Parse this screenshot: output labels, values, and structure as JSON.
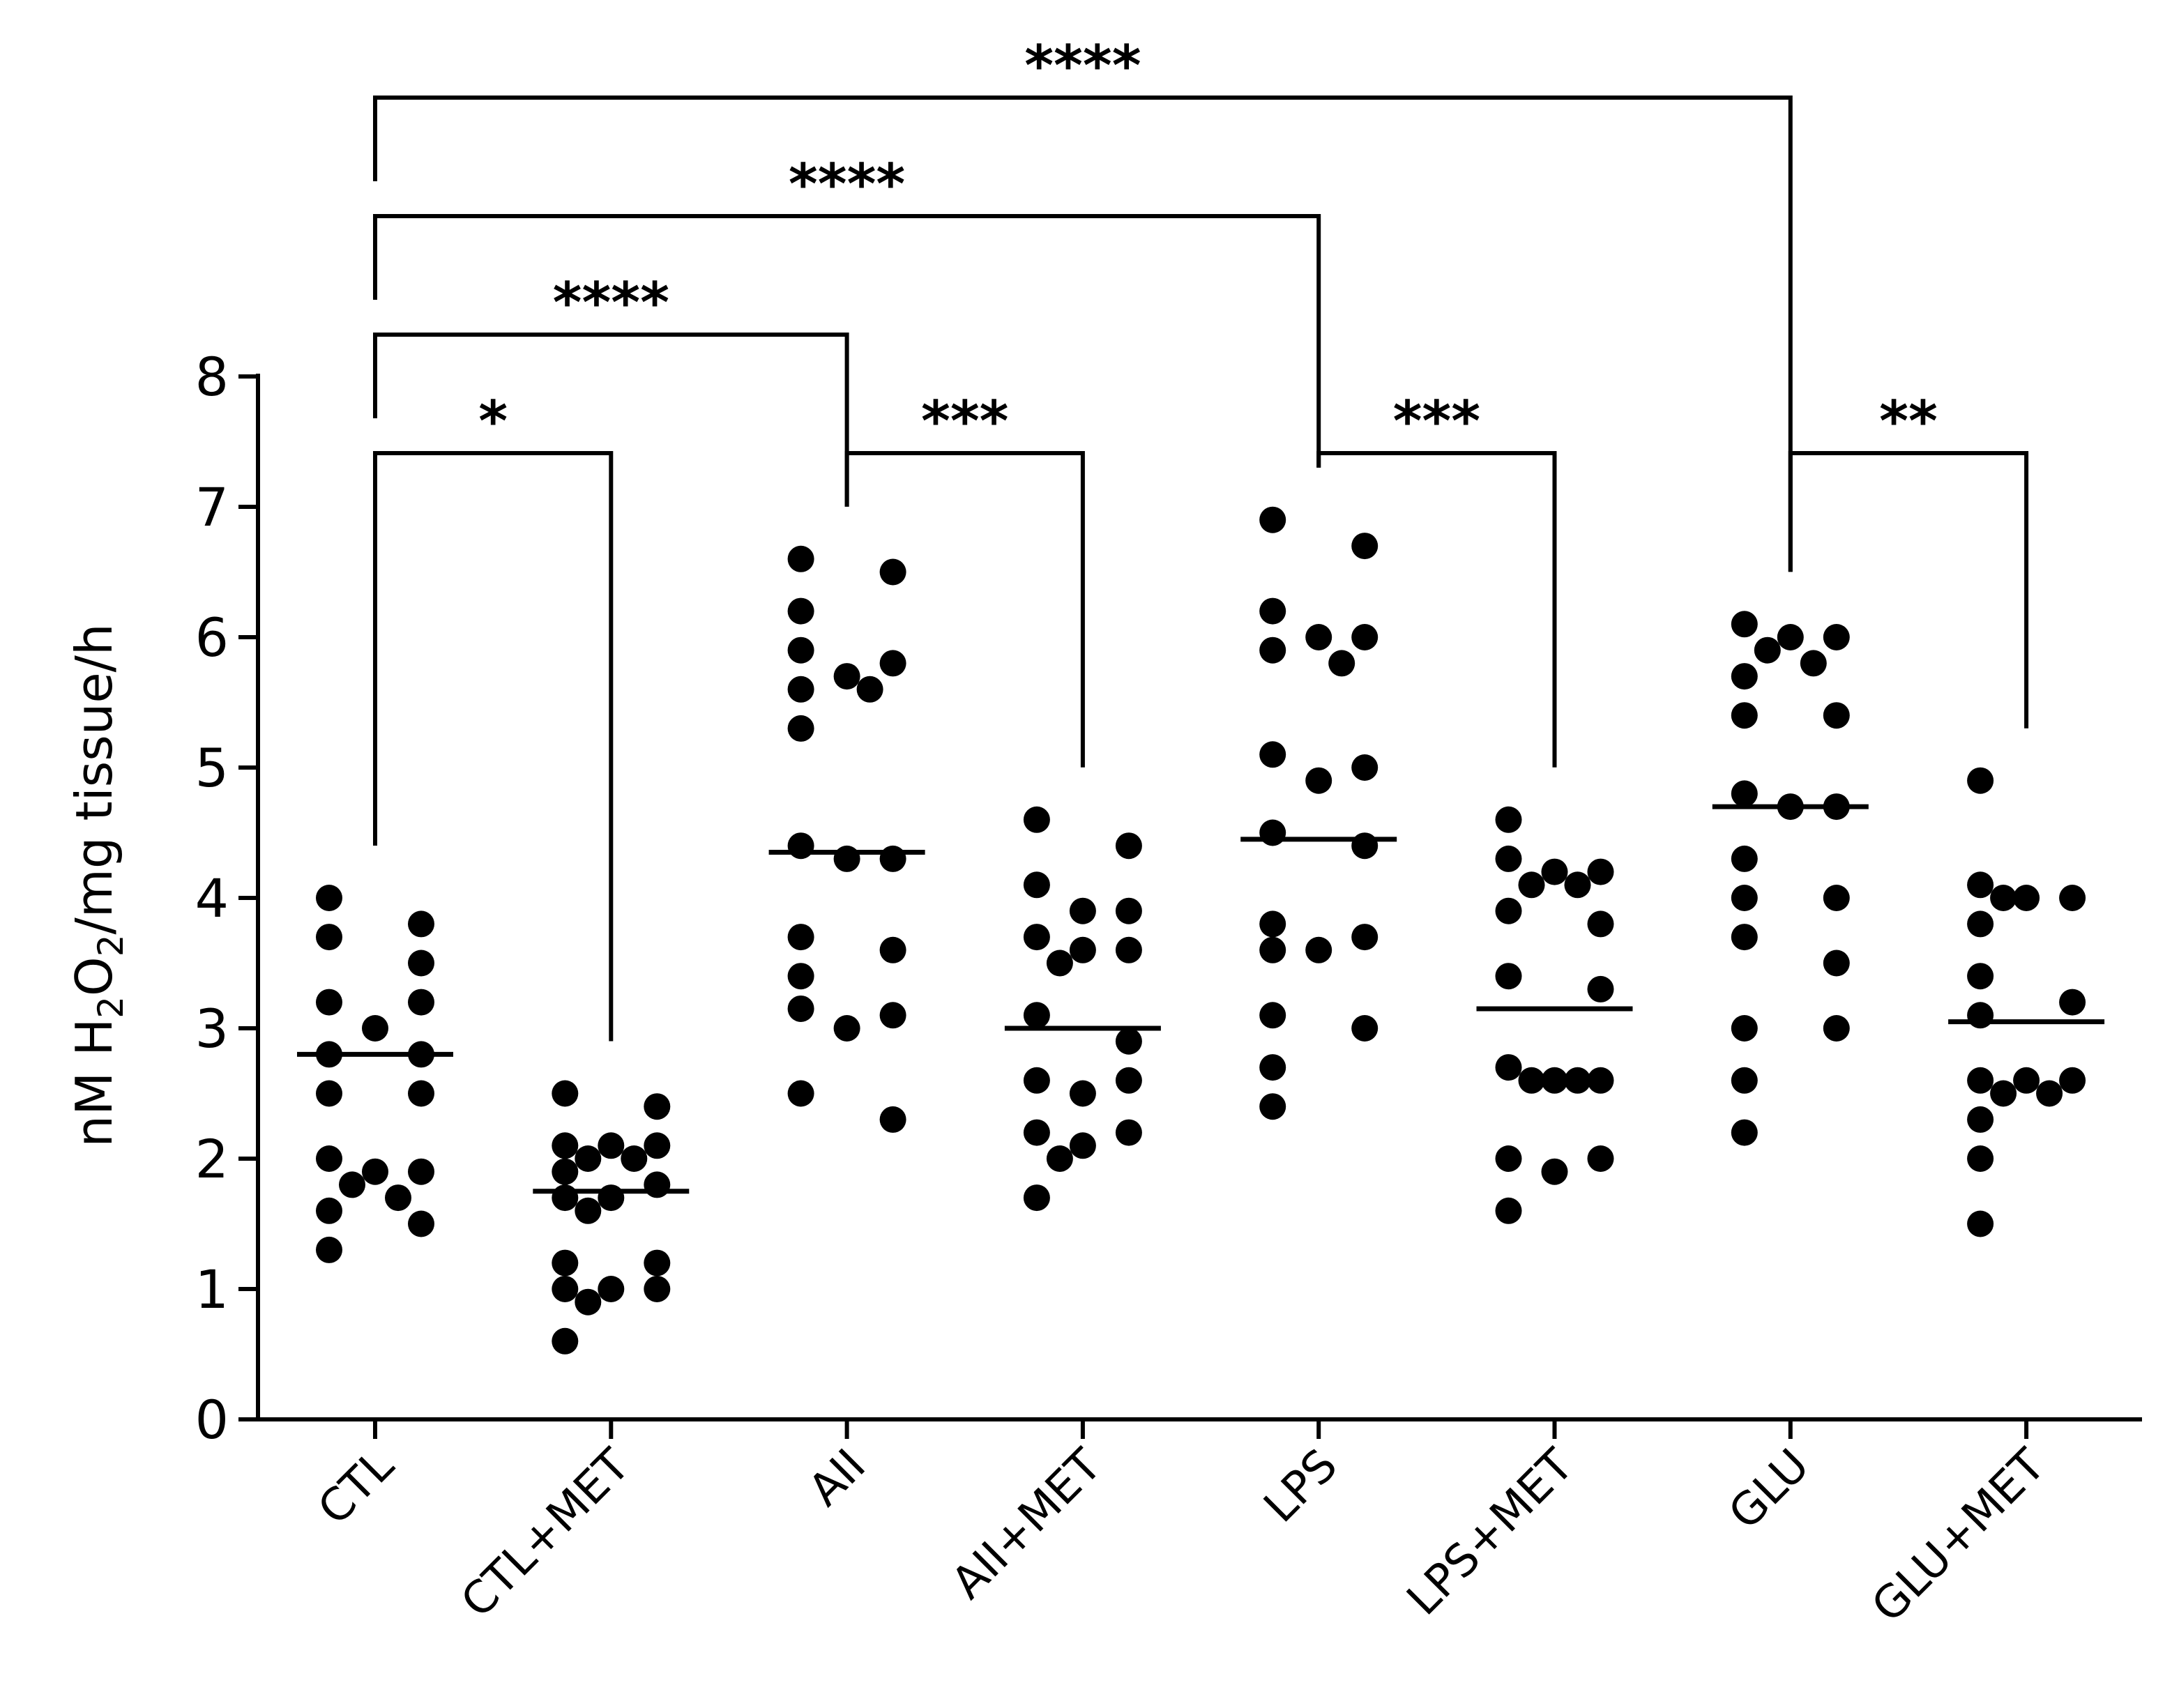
{
  "chart_data": {
    "type": "scatter",
    "title": "",
    "xlabel": "",
    "ylabel": {
      "parts": [
        {
          "text": "nM H",
          "sub": false
        },
        {
          "text": "2",
          "sub": true
        },
        {
          "text": "O",
          "sub": false
        },
        {
          "text": "2",
          "sub": true
        },
        {
          "text": "/mg tissue/h",
          "sub": false
        }
      ]
    },
    "ylim": [
      0,
      8
    ],
    "yticks": [
      "0",
      "1",
      "2",
      "3",
      "4",
      "5",
      "6",
      "7",
      "8"
    ],
    "grid": false,
    "legend": "none",
    "categories": [
      "CTL",
      "CTL+MET",
      "AII",
      "AII+MET",
      "LPS",
      "LPS+MET",
      "GLU",
      "GLU+MET"
    ],
    "groups": [
      {
        "category": "CTL",
        "mean": 2.8,
        "values": [
          4.0,
          3.8,
          3.7,
          3.5,
          3.2,
          3.2,
          3.0,
          2.8,
          2.8,
          2.5,
          2.5,
          2.0,
          1.9,
          1.9,
          1.8,
          1.7,
          1.6,
          1.5,
          1.3
        ]
      },
      {
        "category": "CTL+MET",
        "mean": 1.75,
        "values": [
          2.5,
          2.4,
          2.1,
          2.1,
          2.1,
          2.0,
          2.0,
          1.9,
          1.8,
          1.7,
          1.7,
          1.6,
          1.2,
          1.2,
          1.0,
          1.0,
          1.0,
          0.9,
          0.6
        ]
      },
      {
        "category": "AII",
        "mean": 4.35,
        "values": [
          6.6,
          6.5,
          6.2,
          5.9,
          5.8,
          5.7,
          5.6,
          5.6,
          5.3,
          4.4,
          4.3,
          4.3,
          3.7,
          3.6,
          3.4,
          3.15,
          3.1,
          3.0,
          2.5,
          2.3
        ]
      },
      {
        "category": "AII+MET",
        "mean": 3.0,
        "values": [
          4.6,
          4.4,
          4.1,
          3.9,
          3.9,
          3.7,
          3.6,
          3.6,
          3.5,
          3.1,
          2.9,
          2.6,
          2.6,
          2.5,
          2.2,
          2.2,
          2.1,
          2.0,
          1.7
        ]
      },
      {
        "category": "LPS",
        "mean": 4.45,
        "values": [
          6.9,
          6.7,
          6.2,
          6.0,
          6.0,
          5.9,
          5.8,
          5.1,
          5.0,
          4.9,
          4.5,
          4.4,
          3.8,
          3.7,
          3.6,
          3.6,
          3.1,
          3.0,
          2.7,
          2.4
        ]
      },
      {
        "category": "LPS+MET",
        "mean": 3.15,
        "values": [
          4.6,
          4.3,
          4.2,
          4.2,
          4.1,
          4.1,
          3.9,
          3.8,
          3.4,
          3.3,
          2.7,
          2.6,
          2.6,
          2.6,
          2.6,
          2.0,
          2.0,
          1.9,
          1.6
        ]
      },
      {
        "category": "GLU",
        "mean": 4.7,
        "values": [
          6.1,
          6.0,
          6.0,
          5.9,
          5.8,
          5.7,
          5.4,
          5.4,
          4.8,
          4.7,
          4.7,
          4.3,
          4.0,
          4.0,
          3.7,
          3.5,
          3.0,
          3.0,
          2.6,
          2.2
        ]
      },
      {
        "category": "GLU+MET",
        "mean": 3.05,
        "values": [
          4.9,
          4.1,
          4.0,
          4.0,
          4.0,
          3.8,
          3.4,
          3.2,
          3.1,
          2.6,
          2.6,
          2.6,
          2.5,
          2.5,
          2.3,
          2.0,
          1.5
        ]
      }
    ],
    "comparisons": [
      {
        "from": "CTL",
        "to": "CTL+MET",
        "label": "*"
      },
      {
        "from": "AII",
        "to": "AII+MET",
        "label": "***"
      },
      {
        "from": "LPS",
        "to": "LPS+MET",
        "label": "***"
      },
      {
        "from": "GLU",
        "to": "GLU+MET",
        "label": "**"
      },
      {
        "from": "CTL",
        "to": "AII",
        "label": "****"
      },
      {
        "from": "CTL",
        "to": "LPS",
        "label": "****"
      },
      {
        "from": "CTL",
        "to": "GLU",
        "label": "****"
      }
    ],
    "colors": {
      "points": "#000000",
      "lines": "#000000"
    }
  }
}
